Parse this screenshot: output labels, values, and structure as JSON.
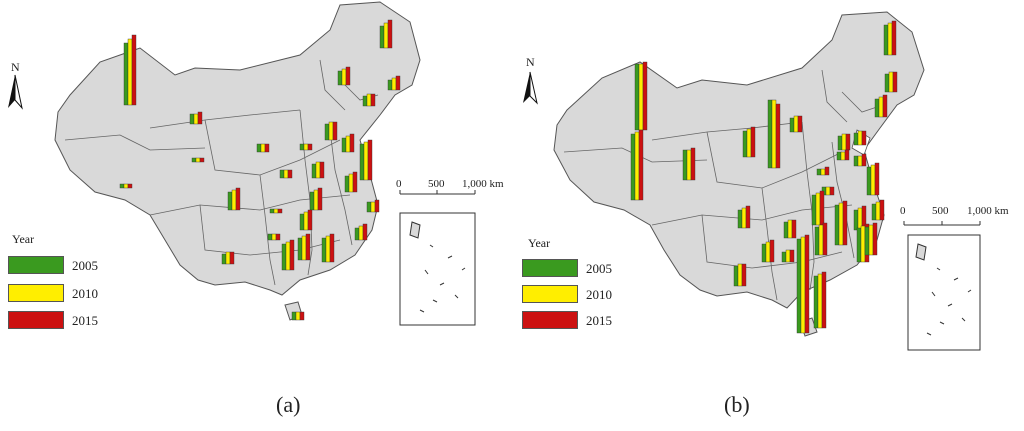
{
  "panels": [
    {
      "id": "a",
      "caption": "(a)",
      "north": "N",
      "legend": {
        "title": "Year",
        "items": [
          {
            "label": "2005",
            "color": "#3a9a1f"
          },
          {
            "label": "2010",
            "color": "#ffee00"
          },
          {
            "label": "2015",
            "color": "#cc1111"
          }
        ]
      },
      "scale": {
        "ticks": [
          "0",
          "500",
          "1,000 km"
        ]
      }
    },
    {
      "id": "b",
      "caption": "(b)",
      "north": "N",
      "legend": {
        "title": "Year",
        "items": [
          {
            "label": "2005",
            "color": "#3a9a1f"
          },
          {
            "label": "2010",
            "color": "#ffee00"
          },
          {
            "label": "2015",
            "color": "#cc1111"
          }
        ]
      },
      "scale": {
        "ticks": [
          "0",
          "500",
          "1,000 km"
        ]
      }
    }
  ],
  "colors": {
    "land": "#d9d9d9",
    "border": "#555555",
    "y2005": "#3a9a1f",
    "y2010": "#ffee00",
    "y2015": "#cc1111"
  }
}
